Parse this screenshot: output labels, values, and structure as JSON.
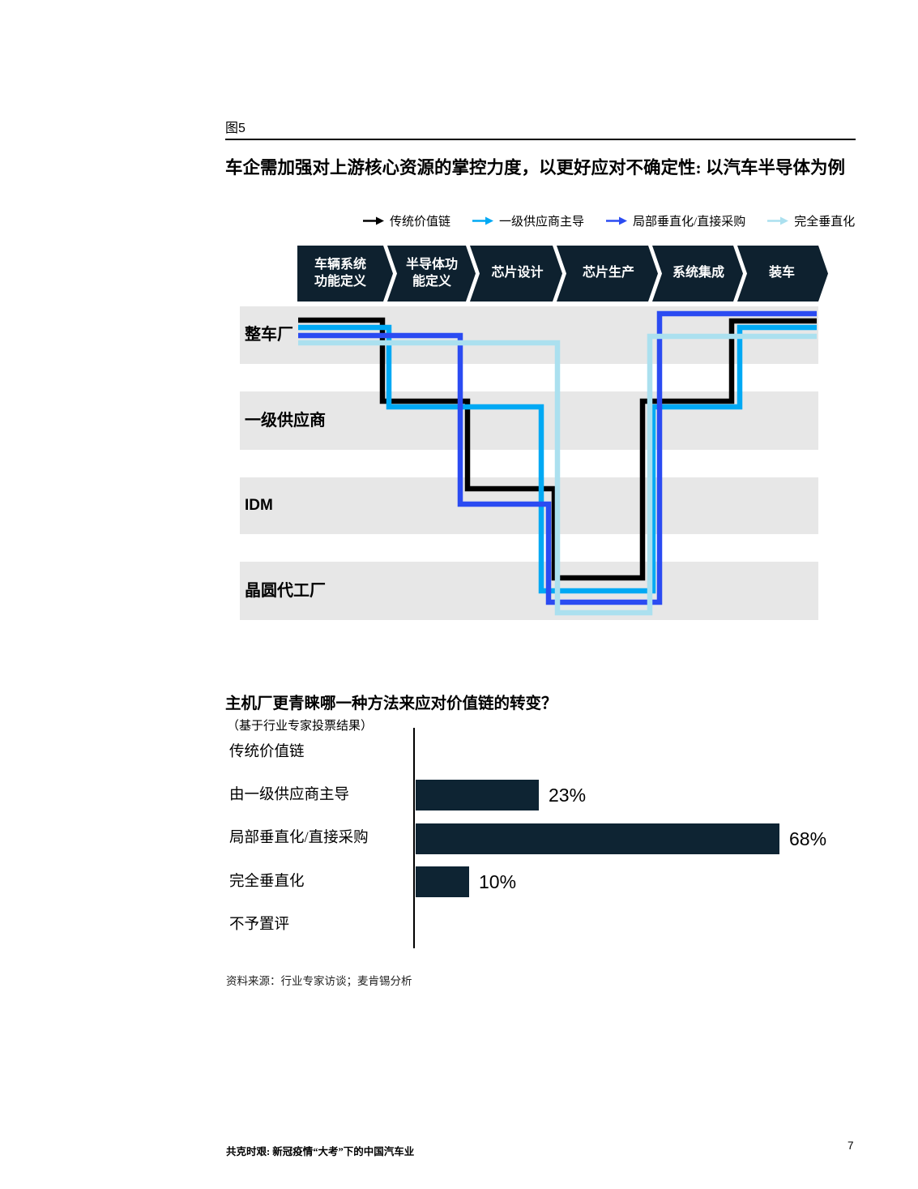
{
  "page": {
    "fig_label": "图5",
    "title": "车企需加强对上游核心资源的掌控力度，以更好应对不确定性: 以汽车半导体为例",
    "source": "资料来源：行业专家访谈；麦肯锡分析",
    "footer_left": "共克时艰: 新冠疫情“大考”下的中国汽车业",
    "page_number": "7"
  },
  "legend": {
    "items": [
      {
        "label": "传统价值链",
        "color": "#000000"
      },
      {
        "label": "一级供应商主导",
        "color": "#00a9f4"
      },
      {
        "label": "局部垂直化/直接采购",
        "color": "#2b4bf2"
      },
      {
        "label": "完全垂直化",
        "color": "#abe0ef"
      }
    ]
  },
  "value_chain": {
    "stage_color": "#0e212f",
    "row_band_color": "#e7e7e7",
    "stages": [
      {
        "label": "车辆系统\n功能定义"
      },
      {
        "label": "半导体功\n能定义"
      },
      {
        "label": "芯片设计"
      },
      {
        "label": "芯片生产"
      },
      {
        "label": "系统集成"
      },
      {
        "label": "装车"
      }
    ],
    "rows": [
      {
        "label": "整车厂"
      },
      {
        "label": "一级供应商"
      },
      {
        "label": "IDM"
      },
      {
        "label": "晶圆代工厂"
      }
    ],
    "flows": [
      {
        "name": "传统价值链",
        "color": "#000000",
        "rows_by_stage": [
          "整车厂",
          "一级供应商",
          "IDM",
          "晶圆代工厂",
          "一级供应商",
          "整车厂"
        ]
      },
      {
        "name": "一级供应商主导",
        "color": "#00a9f4",
        "rows_by_stage": [
          "整车厂",
          "一级供应商",
          "一级供应商",
          "晶圆代工厂",
          "一级供应商",
          "整车厂"
        ]
      },
      {
        "name": "局部垂直化/直接采购",
        "color": "#2b4bf2",
        "rows_by_stage": [
          "整车厂",
          "整车厂",
          "IDM",
          "晶圆代工厂",
          "整车厂",
          "整车厂"
        ]
      },
      {
        "name": "完全垂直化",
        "color": "#abe0ef",
        "rows_by_stage": [
          "整车厂",
          "整车厂",
          "整车厂",
          "晶圆代工厂",
          "整车厂",
          "整车厂"
        ]
      }
    ]
  },
  "chart_data": {
    "type": "bar",
    "title": "主机厂更青睐哪一种方法来应对价值链的转变？",
    "subtitle": "（基于行业专家投票结果）",
    "orientation": "horizontal",
    "categories": [
      "传统价值链",
      "由一级供应商主导",
      "局部垂直化/直接采购",
      "完全垂直化",
      "不予置评"
    ],
    "values": [
      0,
      23,
      68,
      10,
      0
    ],
    "value_labels": [
      "",
      "23%",
      "68%",
      "10%",
      ""
    ],
    "unit": "%",
    "xlim": [
      0,
      100
    ],
    "bar_color": "#0e2433"
  }
}
